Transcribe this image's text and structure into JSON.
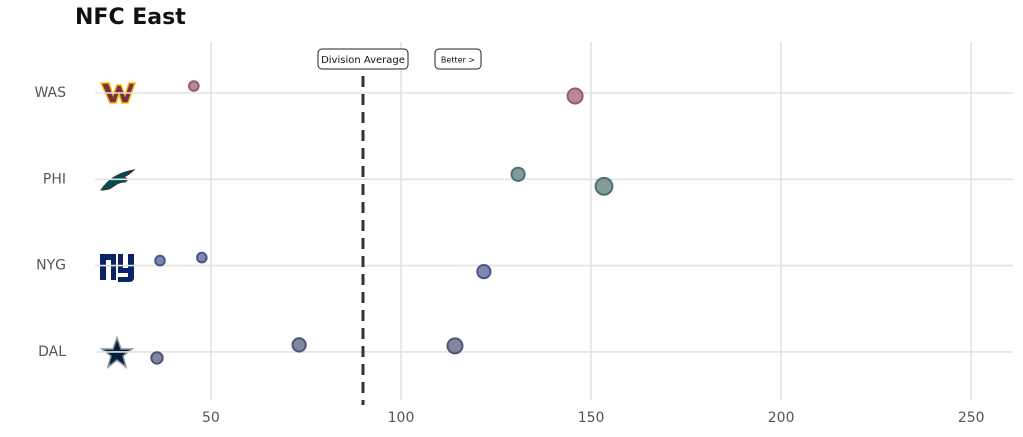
{
  "chart_data": {
    "type": "scatter",
    "title": "NFC East",
    "categories": [
      "WAS",
      "PHI",
      "NYG",
      "DAL"
    ],
    "series": [
      {
        "color": "#9b5a6c",
        "values": [
          45.5,
          145.8
        ],
        "sizes": [
          1,
          2.5
        ]
      },
      {
        "color": "#4f7070",
        "values": [
          130.8,
          153.4
        ],
        "sizes": [
          2,
          3
        ]
      },
      {
        "color": "#4a5690",
        "values": [
          36.6,
          47.6,
          121.8
        ],
        "sizes": [
          1,
          1,
          2
        ]
      },
      {
        "color": "#4c5674",
        "values": [
          35.8,
          73.2,
          114.2
        ],
        "sizes": [
          1.5,
          2,
          2.5
        ]
      }
    ],
    "xlim": [
      19.5,
      261
    ],
    "xticks": [
      50,
      100,
      150,
      200,
      250
    ],
    "grid": true,
    "reference_line": {
      "value": 90,
      "label": "Division Average"
    },
    "annotation": "Better >"
  }
}
